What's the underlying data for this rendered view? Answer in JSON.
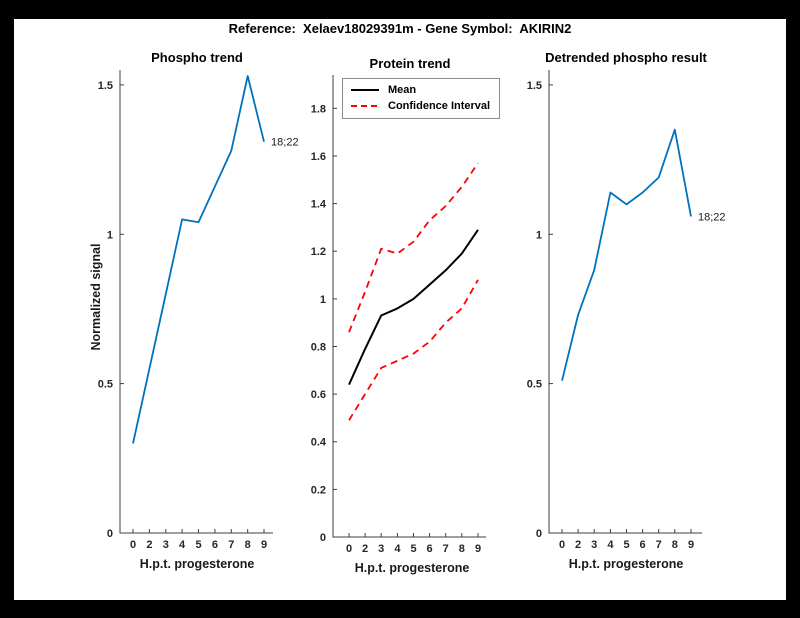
{
  "page": {
    "background": "#000000",
    "figure_background": "#ffffff"
  },
  "header": {
    "title": "Reference:  Xelaev18029391m - Gene Symbol:  AKIRIN2"
  },
  "colors": {
    "line_blue": "#0072BD",
    "line_black": "#000000",
    "line_red": "#FF0000",
    "axis": "#3f3f3f",
    "text": "#262626"
  },
  "chart_data": [
    {
      "id": "phospho-trend",
      "type": "line",
      "title": "Phospho trend",
      "xlabel": "H.p.t. progesterone",
      "ylabel": "Normalized signal",
      "x_ticklabels": [
        "0",
        "2",
        "3",
        "4",
        "5",
        "6",
        "7",
        "8",
        "9"
      ],
      "y_ticks": [
        0,
        0.5,
        1,
        1.5
      ],
      "y_ticklabels": [
        "0",
        "0.5",
        "1",
        "1.5"
      ],
      "ylim": [
        0,
        1.55
      ],
      "grid": false,
      "legend_position": "none",
      "series": [
        {
          "name": "phospho signal",
          "color": "#0072BD",
          "style": "solid",
          "width": 1.8,
          "values": [
            0.3,
            0.55,
            0.8,
            1.05,
            1.04,
            1.16,
            1.28,
            1.53,
            1.31
          ]
        }
      ],
      "annotation": {
        "text": "18;22",
        "series": 0,
        "index": 8
      }
    },
    {
      "id": "protein-trend",
      "type": "line",
      "title": "Protein trend",
      "xlabel": "H.p.t. progesterone",
      "ylabel": "",
      "x_ticklabels": [
        "0",
        "2",
        "3",
        "4",
        "5",
        "6",
        "7",
        "8",
        "9"
      ],
      "y_ticks": [
        0,
        0.2,
        0.4,
        0.6,
        0.8,
        1,
        1.2,
        1.4,
        1.6,
        1.8
      ],
      "y_ticklabels": [
        "0",
        "0.2",
        "0.4",
        "0.6",
        "0.8",
        "1",
        "1.2",
        "1.4",
        "1.6",
        "1.8"
      ],
      "ylim": [
        0,
        1.94
      ],
      "grid": false,
      "legend_position": "northwest",
      "series": [
        {
          "name": "Mean",
          "color": "#000000",
          "style": "solid",
          "width": 2,
          "values": [
            0.64,
            0.79,
            0.93,
            0.96,
            1.0,
            1.06,
            1.12,
            1.19,
            1.29
          ]
        },
        {
          "name": "Confidence Interval upper",
          "color": "#FF0000",
          "style": "dashed",
          "width": 1.8,
          "values": [
            0.86,
            1.03,
            1.21,
            1.19,
            1.24,
            1.33,
            1.39,
            1.47,
            1.57
          ]
        },
        {
          "name": "Confidence Interval lower",
          "color": "#FF0000",
          "style": "dashed",
          "width": 1.8,
          "values": [
            0.49,
            0.6,
            0.71,
            0.74,
            0.77,
            0.82,
            0.9,
            0.96,
            1.08
          ]
        }
      ],
      "legend": {
        "entries": [
          {
            "label": "Mean",
            "color": "#000000",
            "style": "solid"
          },
          {
            "label": "Confidence Interval",
            "color": "#FF0000",
            "style": "dashed"
          }
        ]
      }
    },
    {
      "id": "detrended-phospho",
      "type": "line",
      "title": "Detrended phospho result",
      "xlabel": "H.p.t. progesterone",
      "ylabel": "",
      "x_ticklabels": [
        "0",
        "2",
        "3",
        "4",
        "5",
        "6",
        "7",
        "8",
        "9"
      ],
      "y_ticks": [
        0,
        0.5,
        1,
        1.5
      ],
      "y_ticklabels": [
        "0",
        "0.5",
        "1",
        "1.5"
      ],
      "ylim": [
        0,
        1.55
      ],
      "grid": false,
      "legend_position": "none",
      "series": [
        {
          "name": "detrended phospho",
          "color": "#0072BD",
          "style": "solid",
          "width": 1.8,
          "values": [
            0.51,
            0.73,
            0.88,
            1.14,
            1.1,
            1.14,
            1.19,
            1.35,
            1.06
          ]
        }
      ],
      "annotation": {
        "text": "18;22",
        "series": 0,
        "index": 8
      }
    }
  ]
}
